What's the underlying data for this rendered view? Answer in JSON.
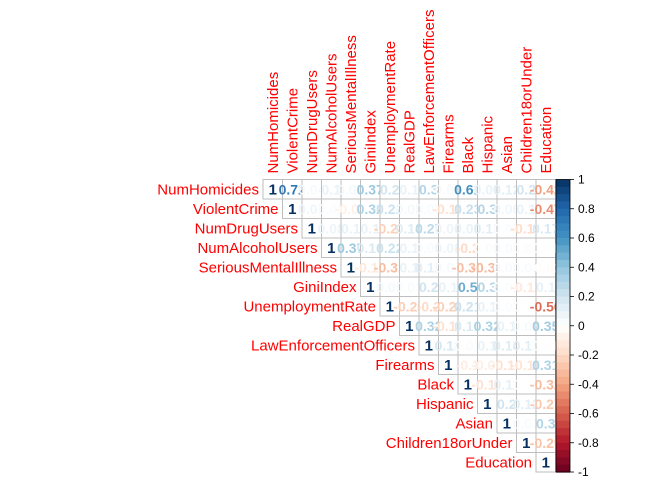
{
  "chart_data": {
    "type": "heatmap",
    "layout": "upper-triangle correlation matrix with coefficient labels",
    "variables": [
      "NumHomicides",
      "ViolentCrime",
      "NumDrugUsers",
      "NumAlcoholUsers",
      "SeriousMentalIllness",
      "GiniIndex",
      "UnemploymentRate",
      "RealGDP",
      "LawEnforcementOfficers",
      "Firearms",
      "Black",
      "Hispanic",
      "Asian",
      "Children18orUnder",
      "Education"
    ],
    "matrix": [
      [
        1,
        0.72,
        0.04,
        0.1,
        0.05,
        0.37,
        0.2,
        0.1,
        0.3,
        0.04,
        0.61,
        0.09,
        0.12,
        0.2,
        -0.42
      ],
      [
        null,
        1,
        0.07,
        0.02,
        -0.08,
        0.32,
        0.22,
        0.05,
        0.03,
        -0.17,
        0.23,
        0.3,
        0.06,
        0.1,
        -0.47
      ],
      [
        null,
        null,
        1,
        0.08,
        0.1,
        0.1,
        -0.24,
        0.14,
        0.27,
        0.08,
        0.09,
        0.13,
        0.02,
        -0.19,
        0.17
      ],
      [
        null,
        null,
        null,
        1,
        0.37,
        0.16,
        0.22,
        0.1,
        0.03,
        0.08,
        -0.2,
        0.02,
        0.03,
        0.02,
        0.01
      ],
      [
        null,
        null,
        null,
        null,
        1,
        -0.13,
        -0.31,
        0.1,
        0.12,
        0.04,
        -0.31,
        -0.33,
        0.03,
        0.03,
        -0.02
      ],
      [
        null,
        null,
        null,
        null,
        null,
        1,
        0.05,
        0.03,
        0.2,
        0.1,
        0.5,
        0.3,
        0.02,
        -0.12,
        0.1
      ],
      [
        null,
        null,
        null,
        null,
        null,
        null,
        1,
        -0.25,
        -0.2,
        -0.24,
        0.21,
        0.1,
        0.02,
        0.01,
        -0.56
      ],
      [
        null,
        null,
        null,
        null,
        null,
        null,
        null,
        1,
        0.32,
        -0.16,
        0.16,
        0.32,
        0.1,
        0.04,
        0.35
      ],
      [
        null,
        null,
        null,
        null,
        null,
        null,
        null,
        null,
        1,
        0.18,
        0.02,
        0.1,
        0.14,
        0.13,
        0.01
      ],
      [
        null,
        null,
        null,
        null,
        null,
        null,
        null,
        null,
        null,
        1,
        -0.1,
        -0.09,
        -0.16,
        -0.15,
        0.31
      ],
      [
        null,
        null,
        null,
        null,
        null,
        null,
        null,
        null,
        null,
        null,
        1,
        -0.16,
        0.11,
        0.01,
        -0.32
      ],
      [
        null,
        null,
        null,
        null,
        null,
        null,
        null,
        null,
        null,
        null,
        null,
        1,
        0.2,
        0.12,
        -0.27
      ],
      [
        null,
        null,
        null,
        null,
        null,
        null,
        null,
        null,
        null,
        null,
        null,
        null,
        1,
        0.03,
        0.3
      ],
      [
        null,
        null,
        null,
        null,
        null,
        null,
        null,
        null,
        null,
        null,
        null,
        null,
        null,
        1,
        -0.29
      ],
      [
        null,
        null,
        null,
        null,
        null,
        null,
        null,
        null,
        null,
        null,
        null,
        null,
        null,
        null,
        1
      ]
    ],
    "colorbar": {
      "range": [
        -1,
        1
      ],
      "ticks": [
        "-1",
        "-0.8",
        "-0.6",
        "-0.4",
        "-0.2",
        "0",
        "0.2",
        "0.4",
        "0.6",
        "0.8",
        "1"
      ]
    },
    "colors": {
      "negative_end": "#67001f",
      "positive_end": "#053061",
      "label_color": "#ff0000",
      "grid": "#bebebe"
    },
    "legend_position": "right"
  }
}
